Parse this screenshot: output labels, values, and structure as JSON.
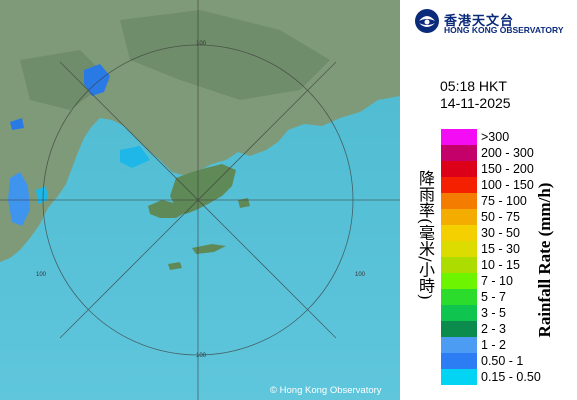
{
  "logo": {
    "title_cn": "香港天文台",
    "title_en": "HONG KONG OBSERVATORY"
  },
  "timestamp": {
    "time": "05:18 HKT",
    "date": "14-11-2025"
  },
  "axis_label_cn": "降雨率(毫米/小時)",
  "axis_label_en": "Rainfall Rate (mm/h)",
  "range_rings": {
    "label": "100"
  },
  "copyright": "© Hong Kong Observatory",
  "legend": [
    {
      "label": ">300",
      "color": "#f40cf4"
    },
    {
      "label": "200 - 300",
      "color": "#c4006a"
    },
    {
      "label": "150 - 200",
      "color": "#dc0018"
    },
    {
      "label": "100 - 150",
      "color": "#f42000"
    },
    {
      "label": "75 - 100",
      "color": "#f47c00"
    },
    {
      "label": "50 - 75",
      "color": "#f4ac00"
    },
    {
      "label": "30 - 50",
      "color": "#f4d000"
    },
    {
      "label": "15 - 30",
      "color": "#dcdc00"
    },
    {
      "label": "10 - 15",
      "color": "#acdc00"
    },
    {
      "label": "7 - 10",
      "color": "#6cf400"
    },
    {
      "label": "5 - 7",
      "color": "#2cdc2c"
    },
    {
      "label": "3 - 5",
      "color": "#10c450"
    },
    {
      "label": "2 - 3",
      "color": "#0c8c4c"
    },
    {
      "label": "1 - 2",
      "color": "#4c9cf4"
    },
    {
      "label": "0.50 - 1",
      "color": "#2c7cf4"
    },
    {
      "label": "0.15 - 0.50",
      "color": "#04d4f4"
    }
  ]
}
